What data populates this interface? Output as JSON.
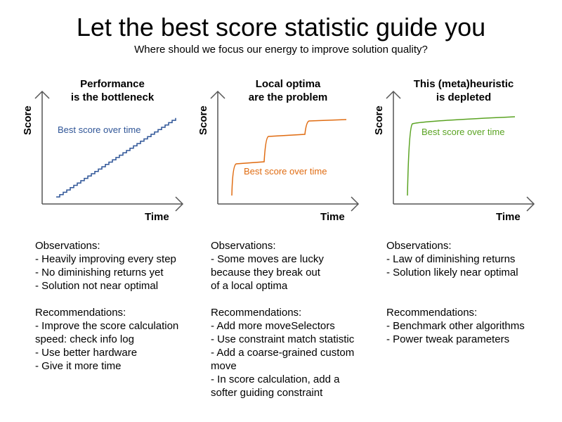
{
  "title": "Let the best score statistic guide you",
  "subtitle": "Where should we focus our energy to improve solution quality?",
  "panels": [
    {
      "title_lines": [
        "Performance",
        "is the bottleneck"
      ],
      "y_axis": "Score",
      "x_axis": "Time",
      "curve_label": "Best score over time",
      "color": "#2f5597",
      "observations_heading": "Observations:",
      "observations": [
        "- Heavily improving every step",
        "- No diminishing returns yet",
        "- Solution not near optimal"
      ],
      "recommendations_heading": "Recommendations:",
      "recommendations": [
        "- Improve the score calculation",
        "speed: check info log",
        "- Use better hardware",
        "- Give it more time"
      ]
    },
    {
      "title_lines": [
        "Local optima",
        "are the problem"
      ],
      "y_axis": "Score",
      "x_axis": "Time",
      "curve_label": "Best score over time",
      "color": "#e06c12",
      "observations_heading": "Observations:",
      "observations": [
        "- Some moves are lucky",
        "because they break out",
        "of a local optima"
      ],
      "recommendations_heading": "Recommendations:",
      "recommendations": [
        "- Add more moveSelectors",
        "- Use constraint match statistic",
        "- Add a coarse-grained custom",
        "move",
        "- In score calculation, add a",
        "softer guiding constraint"
      ]
    },
    {
      "title_lines": [
        "This (meta)heuristic",
        "is depleted"
      ],
      "y_axis": "Score",
      "x_axis": "Time",
      "curve_label": "Best score over time",
      "color": "#5aa322",
      "observations_heading": "Observations:",
      "observations": [
        "- Law of diminishing returns",
        "- Solution likely near optimal"
      ],
      "recommendations_heading": "Recommendations:",
      "recommendations": [
        "- Benchmark other algorithms",
        "- Power tweak parameters"
      ]
    }
  ]
}
